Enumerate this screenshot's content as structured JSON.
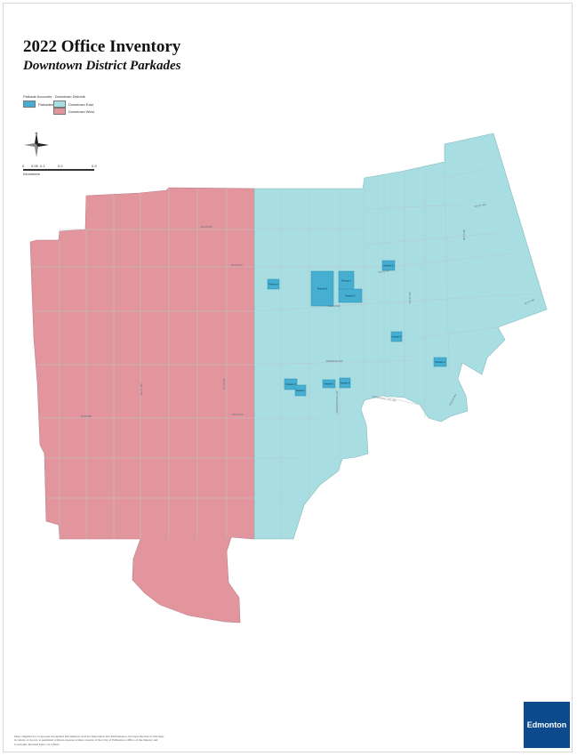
{
  "title": "2022 Office Inventory",
  "subtitle": "Downtown District Parkades",
  "legend": {
    "title": "Parkade Accounts · Downtown Districts",
    "items": [
      {
        "label": "Parkades",
        "color": "#45aed1"
      },
      {
        "label": "Downtown East",
        "color": "#a8dde2"
      },
      {
        "label": "Downtown West",
        "color": "#e3959d"
      }
    ]
  },
  "scale": {
    "ticks": [
      "0",
      "0.05",
      "0.1",
      "0.2",
      "0.3"
    ],
    "unit": "Kilometers"
  },
  "compass": "N",
  "colors": {
    "east": "#a8dde2",
    "west": "#e3959d",
    "parkade": "#45aed1",
    "street": "#b6c9cc"
  },
  "street_labels": [
    "102 AV NW",
    "101 AV NW",
    "100 AV NW",
    "JASPER AV NW",
    "99 AV NW",
    "103 AV NW",
    "104 AV NW",
    "106 ST NW",
    "109 ST NW",
    "97 ST NW",
    "98 ST NW",
    "101 ST NW",
    "GRIERSON HILL NW",
    "MCDOUGALL HILL NW",
    "102A AV NW",
    "95 ST NW"
  ],
  "parkade_labels": [
    "Parkade A",
    "Parkade B",
    "Parkade C",
    "Parkade D",
    "Parkade E",
    "Parkade F",
    "Parkade G",
    "Parkade H",
    "Parkade I",
    "Parkade J",
    "Parkade K"
  ],
  "note": "Map compiled for Corporate Geospatial Information, Service Innovation and Performance. No reproduction of this map, in whole or in part, is permitted without express written consent of the City of Edmonton, Office of the Deputy and Controller. Revised Date: 12.3.2022",
  "logo": "Edmonton"
}
